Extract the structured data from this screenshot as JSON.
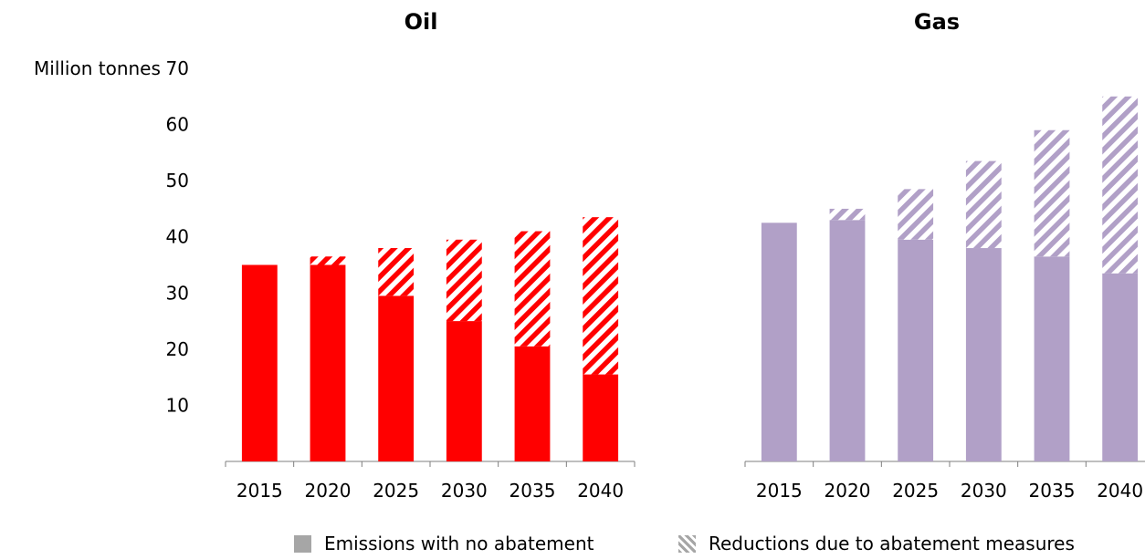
{
  "chart_data": {
    "type": "bar",
    "ylabel": "Million tonnes",
    "ylim": [
      0,
      70
    ],
    "yticks": [
      10,
      20,
      30,
      40,
      50,
      60,
      70
    ],
    "categories": [
      "2015",
      "2020",
      "2025",
      "2030",
      "2035",
      "2040"
    ],
    "panels": [
      {
        "title": "Oil",
        "color": "#ff0000",
        "series": [
          {
            "name": "Emissions with no abatement",
            "values": [
              35,
              35,
              29.5,
              25,
              20.5,
              15.5
            ]
          },
          {
            "name": "Reductions due to abatement measures",
            "values": [
              0,
              1.5,
              8.5,
              14.5,
              20.5,
              28
            ]
          }
        ]
      },
      {
        "title": "Gas",
        "color": "#b1a0c7",
        "series": [
          {
            "name": "Emissions with no abatement",
            "values": [
              42.5,
              43,
              39.5,
              38,
              36.5,
              33.5
            ]
          },
          {
            "name": "Reductions due to abatement measures",
            "values": [
              0,
              2,
              9,
              15.5,
              22.5,
              31.5
            ]
          }
        ]
      }
    ]
  },
  "legend": {
    "no_abatement_label": "Emissions with no abatement",
    "reductions_label": "Reductions due to abatement measures",
    "no_abatement_color": "#a6a6a6",
    "reductions_color": "#a6a6a6"
  }
}
